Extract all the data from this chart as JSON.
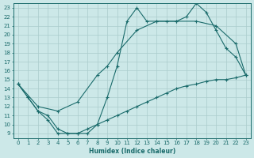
{
  "xlabel": "Humidex (Indice chaleur)",
  "bg_color": "#cce8e8",
  "grid_color": "#aacccc",
  "line_color": "#1a6b6b",
  "xlim": [
    -0.5,
    23.5
  ],
  "ylim": [
    8.5,
    23.5
  ],
  "xticks": [
    0,
    1,
    2,
    3,
    4,
    5,
    6,
    7,
    8,
    9,
    10,
    11,
    12,
    13,
    14,
    15,
    16,
    17,
    18,
    19,
    20,
    21,
    22,
    23
  ],
  "yticks": [
    9,
    10,
    11,
    12,
    13,
    14,
    15,
    16,
    17,
    18,
    19,
    20,
    21,
    22,
    23
  ],
  "curve1_x": [
    0,
    1,
    2,
    3,
    4,
    5,
    6,
    7,
    8,
    9,
    10,
    11,
    12,
    13,
    14,
    15,
    16,
    17,
    18,
    19,
    20,
    21,
    22,
    23
  ],
  "curve1_y": [
    14.5,
    13.0,
    11.5,
    10.5,
    9.0,
    9.0,
    9.0,
    9.0,
    10.0,
    13.0,
    16.5,
    21.5,
    23.0,
    21.5,
    21.5,
    21.5,
    21.5,
    22.0,
    23.5,
    22.5,
    20.5,
    18.5,
    17.5,
    15.5
  ],
  "curve2_x": [
    0,
    2,
    4,
    6,
    8,
    9,
    10,
    12,
    14,
    16,
    18,
    20,
    22,
    23
  ],
  "curve2_y": [
    14.5,
    12.0,
    11.5,
    12.5,
    15.5,
    16.5,
    18.0,
    20.5,
    21.5,
    21.5,
    21.5,
    21.0,
    19.0,
    15.5
  ],
  "curve3_x": [
    0,
    1,
    2,
    3,
    4,
    5,
    6,
    7,
    8,
    9,
    10,
    11,
    12,
    13,
    14,
    15,
    16,
    17,
    18,
    19,
    20,
    21,
    22,
    23
  ],
  "curve3_y": [
    14.5,
    13.0,
    11.5,
    11.0,
    9.5,
    9.0,
    9.0,
    9.5,
    10.0,
    10.5,
    11.0,
    11.5,
    12.0,
    12.5,
    13.0,
    13.5,
    14.0,
    14.3,
    14.5,
    14.8,
    15.0,
    15.0,
    15.2,
    15.5
  ]
}
